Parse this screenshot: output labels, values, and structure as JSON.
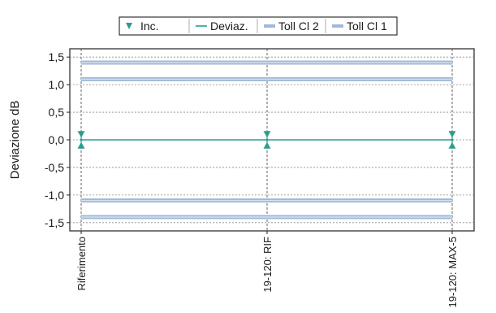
{
  "chart_data": {
    "type": "line",
    "title": "",
    "xlabel": "",
    "ylabel": "Deviazione dB",
    "ylim": [
      -1.65,
      1.65
    ],
    "yticks": [
      1.5,
      1.0,
      0.5,
      0.0,
      -0.5,
      -1.0,
      -1.5
    ],
    "ytick_labels": [
      "1,5",
      "1,0",
      "0,5",
      "0,0",
      "-0,5",
      "-1,0",
      "-1,5"
    ],
    "categories": [
      "Riferimento",
      "19-120: RIF",
      "19-120: MAX-5"
    ],
    "grid": true,
    "legend_position": "top",
    "legend": [
      {
        "label": "Inc.",
        "kind": "marker",
        "color": "#2a9d8f"
      },
      {
        "label": "Deviaz.",
        "kind": "line",
        "color": "#2a9d8f"
      },
      {
        "label": "Toll Cl 2",
        "kind": "band",
        "color": "#9fb9d8"
      },
      {
        "label": "Toll Cl 1",
        "kind": "band",
        "color": "#9fb9d8"
      }
    ],
    "series": [
      {
        "name": "Deviaz.",
        "values": [
          0.0,
          0.0,
          0.0
        ],
        "color": "#2a9d8f"
      },
      {
        "name": "Inc.",
        "values": [
          0.0,
          0.0,
          0.0
        ],
        "uncertainty": 0.1,
        "color": "#2a9d8f"
      },
      {
        "name": "Toll Cl 2",
        "upper": [
          1.4,
          1.4,
          1.4
        ],
        "lower": [
          -1.4,
          -1.4,
          -1.4
        ],
        "color": "#9fb9d8"
      },
      {
        "name": "Toll Cl 1",
        "upper": [
          1.1,
          1.1,
          1.1
        ],
        "lower": [
          -1.1,
          -1.1,
          -1.1
        ],
        "color": "#9fb9d8"
      }
    ]
  }
}
